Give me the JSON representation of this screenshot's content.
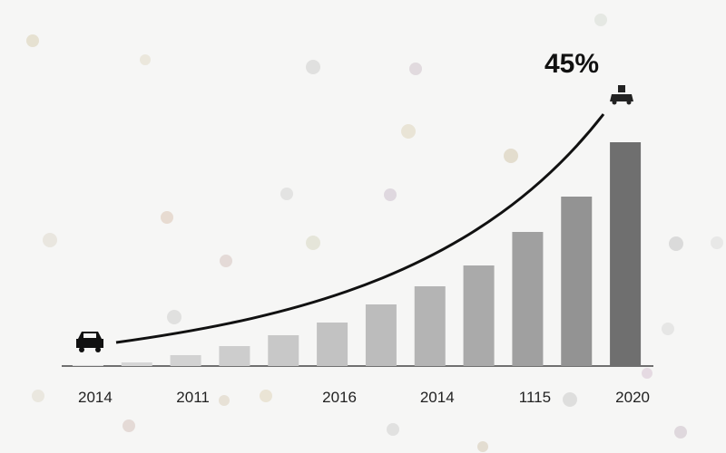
{
  "chart_data": {
    "type": "bar",
    "categories": [
      "2014",
      null,
      "2011",
      null,
      null,
      "2016",
      null,
      "2014",
      null,
      "1115",
      null,
      "2020"
    ],
    "values": [
      1,
      4,
      12,
      22,
      34,
      48,
      68,
      88,
      111,
      148,
      187,
      247
    ],
    "colors": [
      "#dcdcdc",
      "#d6d6d6",
      "#d2d2d2",
      "#cdcdcd",
      "#c8c8c8",
      "#c2c2c2",
      "#bcbcbc",
      "#b4b4b4",
      "#aaaaaa",
      "#a0a0a0",
      "#939393",
      "#6f6f6f"
    ],
    "ylim": [
      0,
      250
    ],
    "annotation": "45%"
  }
}
